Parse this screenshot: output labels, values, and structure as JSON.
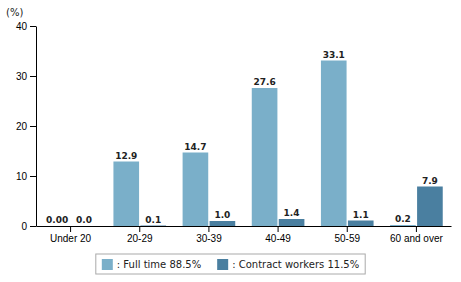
{
  "chart_data": {
    "type": "bar",
    "ylabel": "(%)",
    "categories": [
      "Under 20",
      "20-29",
      "30-39",
      "40-49",
      "50-59",
      "60 and over"
    ],
    "series": [
      {
        "name": ": Full time 88.5%",
        "color": "#7aafc9",
        "values": [
          0.0,
          12.9,
          14.7,
          27.6,
          33.1,
          0.2
        ],
        "value_labels": [
          "0.00",
          "12.9",
          "14.7",
          "27.6",
          "33.1",
          "0.2"
        ]
      },
      {
        "name": ": Contract workers 11.5%",
        "color": "#4a7fa0",
        "values": [
          0.0,
          0.1,
          1.0,
          1.4,
          1.1,
          7.9
        ],
        "value_labels": [
          "0.0",
          "0.1",
          "1.0",
          "1.4",
          "1.1",
          "7.9"
        ]
      }
    ],
    "ylim": [
      0,
      40
    ],
    "yticks": [
      0,
      10,
      20,
      30,
      40
    ],
    "grid": false,
    "data_labels": true,
    "legend": "bottom"
  }
}
